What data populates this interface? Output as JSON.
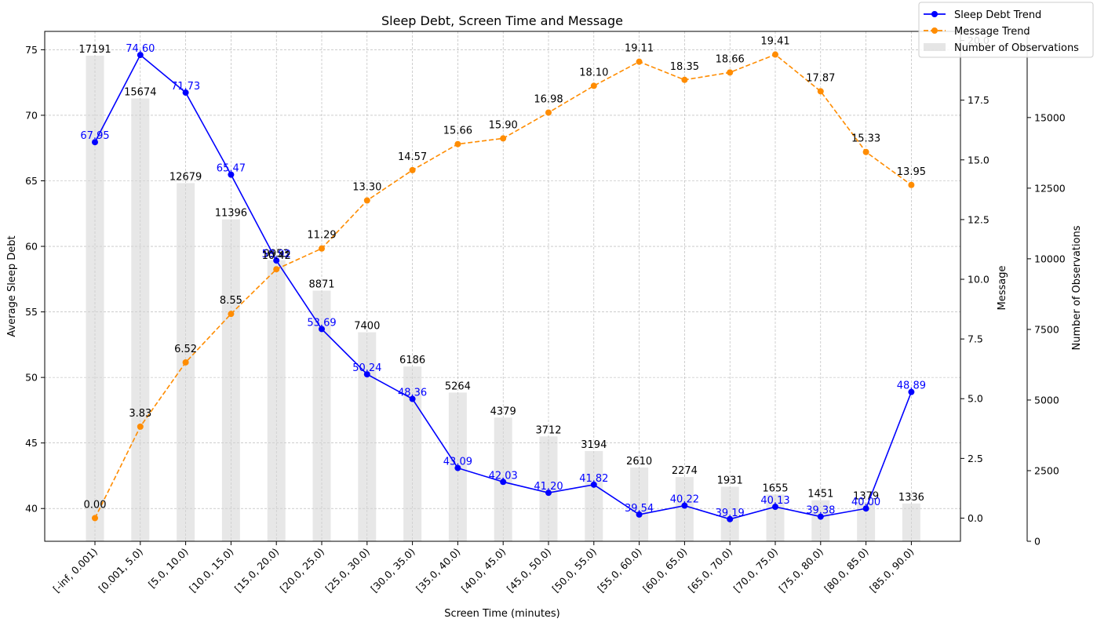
{
  "chart_data": {
    "type": "line",
    "title": "Sleep Debt, Screen Time and Message",
    "xlabel": "Screen Time (minutes)",
    "ylabel": "Average Sleep Debt",
    "y2label": "Message",
    "y3label": "Number of Observations",
    "categories": [
      "[-inf, 0.001)",
      "[0.001, 5.0)",
      "[5.0, 10.0)",
      "[10.0, 15.0)",
      "[15.0, 20.0)",
      "[20.0, 25.0)",
      "[25.0, 30.0)",
      "[30.0, 35.0)",
      "[35.0, 40.0)",
      "[40.0, 45.0)",
      "[45.0, 50.0)",
      "[50.0, 55.0)",
      "[55.0, 60.0)",
      "[60.0, 65.0)",
      "[65.0, 70.0)",
      "[70.0, 75.0)",
      "[75.0, 80.0)",
      "[80.0, 85.0)",
      "[85.0, 90.0)"
    ],
    "series": [
      {
        "name": "Sleep Debt Trend",
        "axis": "left",
        "color": "#0000ff",
        "style": "solid",
        "values": [
          67.95,
          74.6,
          71.73,
          65.47,
          58.92,
          53.69,
          50.24,
          48.36,
          43.09,
          42.03,
          41.2,
          41.82,
          39.54,
          40.22,
          39.19,
          40.13,
          39.38,
          40.0,
          48.89
        ],
        "labels": [
          "67.95",
          "74.60",
          "71.73",
          "65.47",
          "58.92",
          "53.69",
          "50.24",
          "48.36",
          "43.09",
          "42.03",
          "41.20",
          "41.82",
          "39.54",
          "40.22",
          "39.19",
          "40.13",
          "39.38",
          "40.00",
          "48.89"
        ]
      },
      {
        "name": "Message Trend",
        "axis": "right",
        "color": "#ff8c00",
        "style": "dashed",
        "values": [
          0.0,
          3.83,
          6.52,
          8.55,
          10.42,
          11.29,
          13.3,
          14.57,
          15.66,
          15.9,
          16.98,
          18.1,
          19.11,
          18.35,
          18.66,
          19.41,
          17.87,
          15.33,
          13.95
        ],
        "labels": [
          "0.00",
          "3.83",
          "6.52",
          "8.55",
          "10.42",
          "11.29",
          "13.30",
          "14.57",
          "15.66",
          "15.90",
          "16.98",
          "18.10",
          "19.11",
          "18.35",
          "18.66",
          "19.41",
          "17.87",
          "15.33",
          "13.95"
        ]
      },
      {
        "name": "Number of Observations",
        "axis": "right-outer",
        "color": "#d3d3d3",
        "style": "bar",
        "values": [
          17191,
          15674,
          12679,
          11396,
          9953,
          8871,
          7400,
          6186,
          5264,
          4379,
          3712,
          3194,
          2610,
          2274,
          1931,
          1655,
          1451,
          1379,
          1336
        ],
        "labels": [
          "17191",
          "15674",
          "12679",
          "11396",
          "9953",
          "8871",
          "7400",
          "6186",
          "5264",
          "4379",
          "3712",
          "3194",
          "2610",
          "2274",
          "1931",
          "1655",
          "1451",
          "1379",
          "1336"
        ]
      }
    ],
    "ylim": [
      37.5,
      76.4
    ],
    "y2lim": [
      -0.97,
      20.38
    ],
    "y3lim": [
      0,
      18050
    ],
    "yticks": [
      "40",
      "45",
      "50",
      "55",
      "60",
      "65",
      "70",
      "75"
    ],
    "y2ticks": [
      "0.0",
      "2.5",
      "5.0",
      "7.5",
      "10.0",
      "12.5",
      "15.0",
      "17.5",
      "20.0"
    ],
    "y3ticks": [
      "0",
      "2500",
      "5000",
      "7500",
      "10000",
      "12500",
      "15000"
    ],
    "grid": true,
    "legend_position": "top-right",
    "legend": [
      "Sleep Debt Trend",
      "Message Trend",
      "Number of Observations"
    ]
  }
}
